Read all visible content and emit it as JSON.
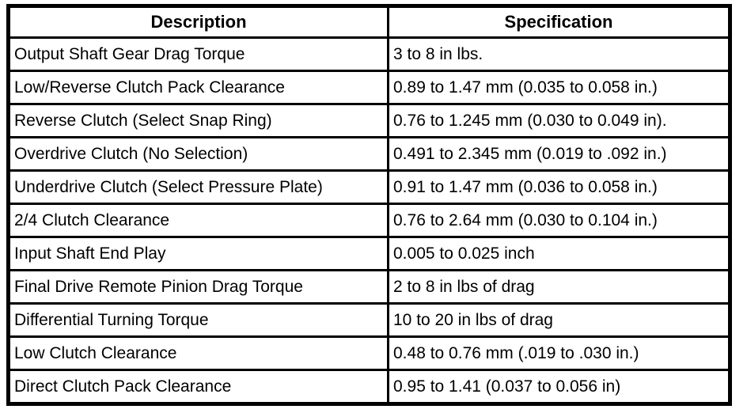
{
  "colors": {
    "border": "#000000",
    "text": "#000000",
    "background": "#ffffff"
  },
  "table": {
    "headers": [
      "Description",
      "Specification"
    ],
    "rows": [
      {
        "description": "Output Shaft Gear Drag Torque",
        "specification": "3 to 8 in lbs."
      },
      {
        "description": "Low/Reverse Clutch Pack Clearance",
        "specification": "0.89 to 1.47 mm (0.035 to 0.058 in.)"
      },
      {
        "description": "Reverse Clutch (Select Snap Ring)",
        "specification": "0.76 to 1.245 mm (0.030 to 0.049 in)."
      },
      {
        "description": "Overdrive Clutch (No Selection)",
        "specification": "0.491 to 2.345 mm (0.019 to .092 in.)"
      },
      {
        "description": "Underdrive Clutch (Select Pressure Plate)",
        "specification": "0.91 to 1.47 mm (0.036 to 0.058 in.)"
      },
      {
        "description": "2/4 Clutch Clearance",
        "specification": "0.76 to 2.64 mm (0.030 to 0.104 in.)"
      },
      {
        "description": "Input Shaft End Play",
        "specification": "0.005 to 0.025 inch"
      },
      {
        "description": "Final Drive Remote Pinion Drag Torque",
        "specification": "2 to 8 in lbs of drag"
      },
      {
        "description": "Differential Turning Torque",
        "specification": "10 to 20 in lbs of drag"
      },
      {
        "description": "Low Clutch Clearance",
        "specification": "0.48 to 0.76 mm (.019 to .030 in.)"
      },
      {
        "description": "Direct Clutch Pack Clearance",
        "specification": "0.95 to 1.41 (0.037 to 0.056 in)"
      }
    ]
  }
}
